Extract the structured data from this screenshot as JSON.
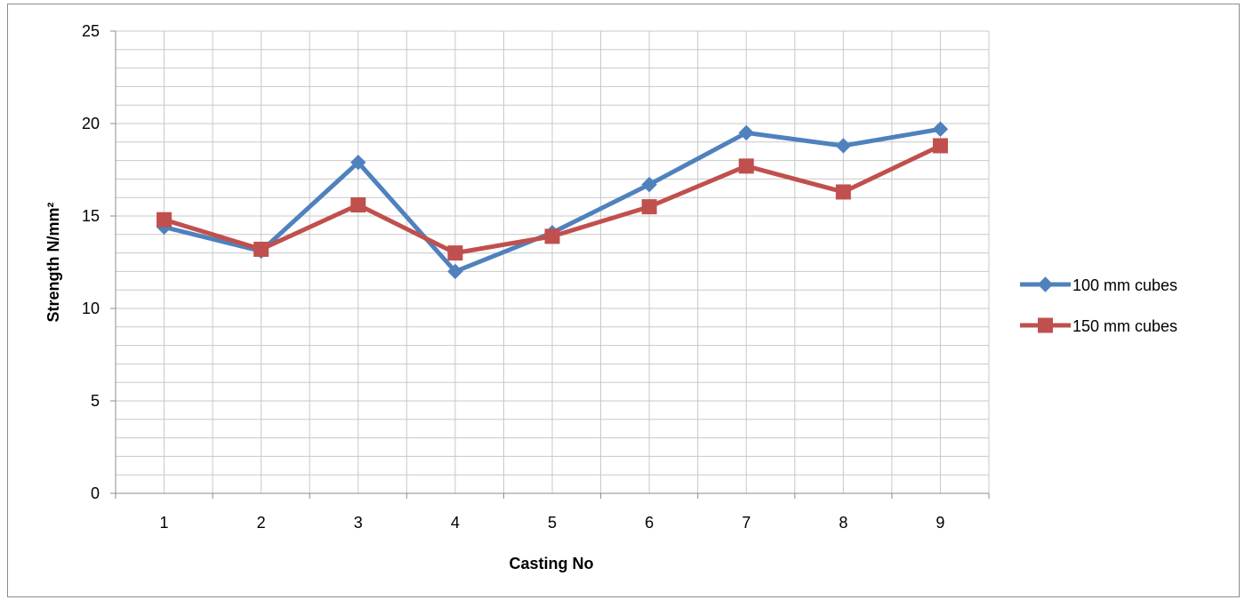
{
  "chart_data": {
    "type": "line",
    "title": "",
    "xlabel": "Casting No",
    "ylabel": "Strength N/mm²",
    "categories": [
      "1",
      "2",
      "3",
      "4",
      "5",
      "6",
      "7",
      "8",
      "9"
    ],
    "ylim": [
      0,
      25
    ],
    "y_ticks": [
      "0",
      "5",
      "10",
      "15",
      "20",
      "25"
    ],
    "grid": true,
    "legend_position": "right",
    "series": [
      {
        "name": "100 mm cubes",
        "values": [
          14.4,
          13.1,
          17.9,
          12.0,
          14.1,
          16.7,
          19.5,
          18.8,
          19.7
        ],
        "color": "#4f81bd",
        "marker": "diamond"
      },
      {
        "name": "150 mm cubes",
        "values": [
          14.8,
          13.2,
          15.6,
          13.0,
          13.9,
          15.5,
          17.7,
          16.3,
          18.8
        ],
        "color": "#c0504d",
        "marker": "square"
      }
    ]
  }
}
